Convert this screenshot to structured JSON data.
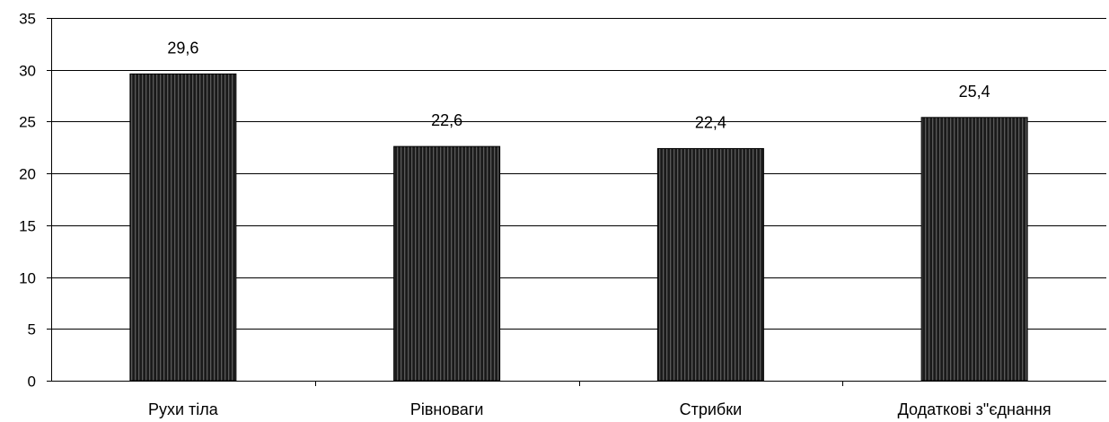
{
  "chart_data": {
    "type": "bar",
    "title": "",
    "xlabel": "",
    "ylabel": "",
    "categories": [
      "Рухи тіла",
      "Рівноваги",
      "Стрибки",
      "Додаткові з\"єднання"
    ],
    "values": [
      29.6,
      22.6,
      22.4,
      25.4
    ],
    "data_labels": [
      "29,6",
      "22,6",
      "22,4",
      "25,4"
    ],
    "ylim": [
      0,
      35
    ],
    "yticks": [
      "0",
      "5",
      "10",
      "15",
      "20",
      "25",
      "30",
      "35"
    ],
    "grid": true,
    "legend": "none",
    "colors": {
      "bar_fill": "#1a1a1a",
      "bar_stripe": "#5a5a5a",
      "grid": "#000000",
      "text": "#000000"
    }
  }
}
